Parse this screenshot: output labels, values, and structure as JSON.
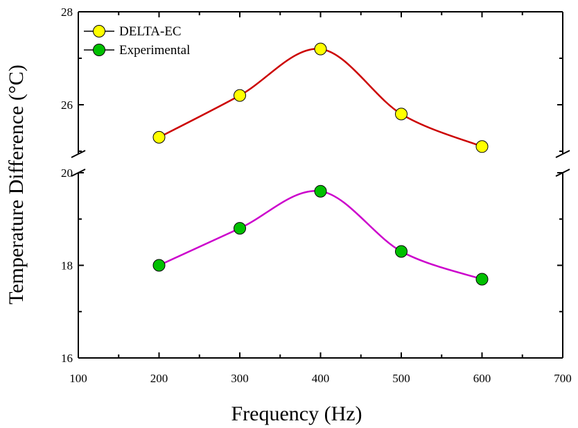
{
  "chart_data": {
    "type": "line",
    "xlabel": "Frequency (Hz)",
    "ylabel": "Temperature Difference (°C)",
    "xlim": [
      100,
      700
    ],
    "xticks": [
      100,
      200,
      300,
      400,
      500,
      600,
      700
    ],
    "y_axis_break": true,
    "ylim_upper": [
      25,
      28
    ],
    "yticks_upper": [
      26,
      28
    ],
    "ylim_lower": [
      16,
      20
    ],
    "yticks_lower": [
      16,
      18,
      20
    ],
    "grid": false,
    "legend_position": "top-left",
    "x": [
      200,
      300,
      400,
      500,
      600
    ],
    "series": [
      {
        "name": "DELTA-EC",
        "values": [
          25.3,
          26.2,
          27.2,
          25.8,
          25.1
        ],
        "marker_color": "#ffff00",
        "line_color": "#cc0000",
        "segment": "upper"
      },
      {
        "name": "Experimental",
        "values": [
          18.0,
          18.8,
          19.6,
          18.3,
          17.7
        ],
        "marker_color": "#00c000",
        "line_color": "#cc00cc",
        "segment": "lower"
      }
    ]
  }
}
